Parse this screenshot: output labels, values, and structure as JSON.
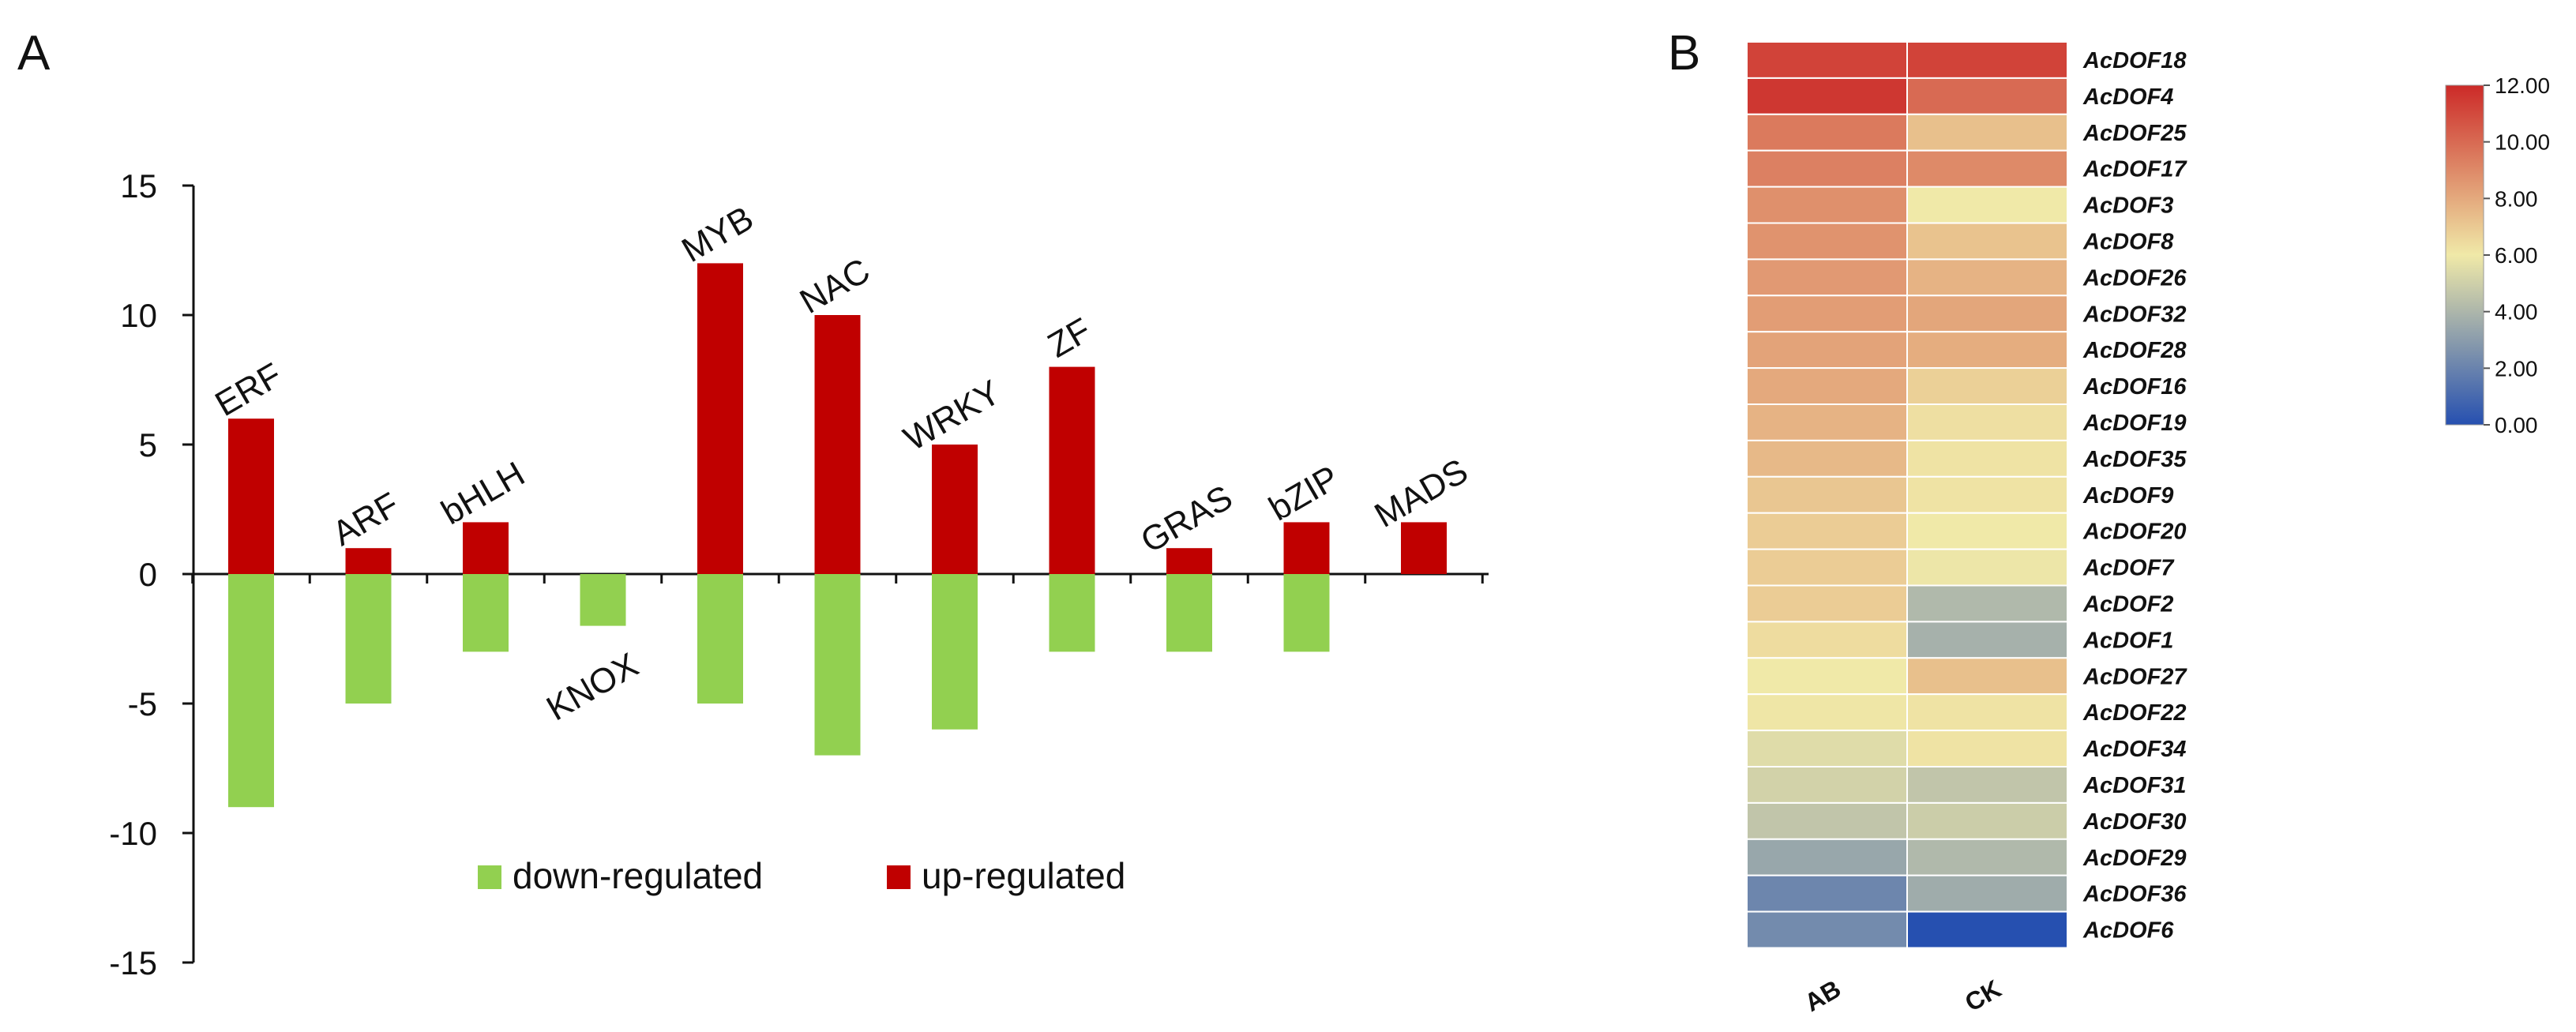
{
  "panels": {
    "a_label": "A",
    "b_label": "B"
  },
  "chart_data": [
    {
      "type": "bar",
      "title": "",
      "xlabel": "",
      "ylabel": "",
      "ylim": [
        -15,
        15
      ],
      "yticks": [
        15,
        10,
        5,
        0,
        -5,
        -10,
        -15
      ],
      "categories": [
        "ERF",
        "ARF",
        "bHLH",
        "KNOX",
        "MYB",
        "NAC",
        "WRKY",
        "ZF",
        "GRAS",
        "bZIP",
        "MADS"
      ],
      "series": [
        {
          "name": "up-regulated",
          "color": "#c00000",
          "values": [
            6,
            1,
            2,
            0,
            12,
            10,
            5,
            8,
            1,
            2,
            2
          ]
        },
        {
          "name": "down-regulated",
          "color": "#92d050",
          "values": [
            -9,
            -5,
            -3,
            -2,
            -5,
            -7,
            -6,
            -3,
            -3,
            -3,
            0
          ]
        }
      ],
      "legend": {
        "placement": "bottom-center",
        "order": [
          "down-regulated",
          "up-regulated"
        ]
      }
    },
    {
      "type": "heatmap",
      "title": "",
      "columns": [
        "AB",
        "CK"
      ],
      "rows": [
        "AcDOF18",
        "AcDOF4",
        "AcDOF25",
        "AcDOF17",
        "AcDOF3",
        "AcDOF8",
        "AcDOF26",
        "AcDOF32",
        "AcDOF28",
        "AcDOF16",
        "AcDOF19",
        "AcDOF35",
        "AcDOF9",
        "AcDOF20",
        "AcDOF7",
        "AcDOF2",
        "AcDOF1",
        "AcDOF27",
        "AcDOF22",
        "AcDOF34",
        "AcDOF31",
        "AcDOF30",
        "AcDOF29",
        "AcDOF36",
        "AcDOF6"
      ],
      "values": [
        [
          11.2,
          11.2
        ],
        [
          11.6,
          10.0
        ],
        [
          9.5,
          7.3
        ],
        [
          9.3,
          9.0
        ],
        [
          8.8,
          6.0
        ],
        [
          8.7,
          7.2
        ],
        [
          8.5,
          7.7
        ],
        [
          8.4,
          8.1
        ],
        [
          8.2,
          7.9
        ],
        [
          8.0,
          6.8
        ],
        [
          7.7,
          6.3
        ],
        [
          7.5,
          6.2
        ],
        [
          7.1,
          6.2
        ],
        [
          6.9,
          6.0
        ],
        [
          6.9,
          5.9
        ],
        [
          6.9,
          4.1
        ],
        [
          6.4,
          3.8
        ],
        [
          6.0,
          7.3
        ],
        [
          6.1,
          6.2
        ],
        [
          5.5,
          6.2
        ],
        [
          5.1,
          4.6
        ],
        [
          4.6,
          4.9
        ],
        [
          3.4,
          4.1
        ],
        [
          2.1,
          3.6
        ],
        [
          2.3,
          0.0
        ]
      ],
      "colorbar": {
        "min": 0,
        "max": 12,
        "ticks": [
          "12.00",
          "10.00",
          "8.00",
          "6.00",
          "4.00",
          "2.00",
          "0.00"
        ],
        "colors": {
          "low": "#2650b0",
          "mid": "#f0e9a8",
          "high": "#cc2a28"
        }
      }
    }
  ]
}
